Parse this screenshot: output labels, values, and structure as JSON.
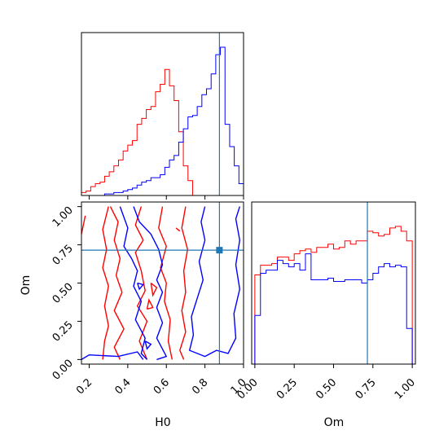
{
  "chart_data": {
    "type": "corner",
    "parameters": [
      "H0",
      "Om"
    ],
    "xlabel_h0": "H0",
    "xlabel_om": "Om",
    "ylabel_om": "Om",
    "ticks": {
      "H0": [
        "0.2",
        "0.4",
        "0.6",
        "0.8",
        "1.0"
      ],
      "Om": [
        "0.00",
        "0.25",
        "0.50",
        "0.75",
        "1.00"
      ]
    },
    "truth": {
      "H0": 0.875,
      "Om": 0.715
    },
    "colors": {
      "red": "#ff0000",
      "blue": "#0000ff",
      "truth": "#1f77b4"
    },
    "hist_h0": {
      "range": [
        0.16,
        1.0
      ],
      "red": [
        0.02,
        0.03,
        0.06,
        0.08,
        0.09,
        0.13,
        0.16,
        0.2,
        0.24,
        0.3,
        0.34,
        0.37,
        0.48,
        0.52,
        0.58,
        0.6,
        0.7,
        0.75,
        0.85,
        0.74,
        0.64,
        0.43,
        0.2,
        0.1,
        0.0,
        0.0,
        0.0,
        0.0,
        0.0,
        0.0,
        0.0,
        0.0,
        0.0,
        0.0,
        0.0
      ],
      "blue": [
        0.0,
        0.0,
        0.0,
        0.0,
        0.0,
        0.01,
        0.01,
        0.02,
        0.02,
        0.03,
        0.04,
        0.05,
        0.07,
        0.09,
        0.1,
        0.12,
        0.12,
        0.14,
        0.19,
        0.24,
        0.27,
        0.36,
        0.45,
        0.53,
        0.54,
        0.6,
        0.68,
        0.72,
        0.82,
        0.95,
        1.0,
        0.48,
        0.33,
        0.2,
        0.08
      ]
    },
    "hist_om": {
      "range": [
        0.0,
        1.0
      ],
      "red": [
        0.55,
        0.61,
        0.61,
        0.62,
        0.66,
        0.66,
        0.64,
        0.68,
        0.7,
        0.71,
        0.69,
        0.72,
        0.72,
        0.74,
        0.71,
        0.72,
        0.76,
        0.74,
        0.76,
        0.76,
        0.82,
        0.81,
        0.79,
        0.8,
        0.84,
        0.85,
        0.82,
        0.76
      ],
      "blue": [
        0.3,
        0.56,
        0.58,
        0.58,
        0.64,
        0.62,
        0.6,
        0.62,
        0.58,
        0.68,
        0.52,
        0.52,
        0.52,
        0.53,
        0.51,
        0.51,
        0.52,
        0.52,
        0.52,
        0.5,
        0.52,
        0.56,
        0.6,
        0.62,
        0.6,
        0.61,
        0.6,
        0.22
      ]
    },
    "contours_2d": {
      "red": [
        [
          [
            0.27,
            0.0
          ],
          [
            0.28,
            0.12
          ],
          [
            0.3,
            0.22
          ],
          [
            0.28,
            0.35
          ],
          [
            0.3,
            0.48
          ],
          [
            0.27,
            0.6
          ],
          [
            0.29,
            0.72
          ],
          [
            0.27,
            0.85
          ],
          [
            0.3,
            1.0
          ]
        ],
        [
          [
            0.31,
            1.0
          ],
          [
            0.35,
            0.9
          ],
          [
            0.33,
            0.78
          ],
          [
            0.36,
            0.66
          ],
          [
            0.34,
            0.55
          ],
          [
            0.37,
            0.44
          ],
          [
            0.33,
            0.32
          ],
          [
            0.38,
            0.2
          ],
          [
            0.33,
            0.08
          ],
          [
            0.36,
            0.0
          ]
        ],
        [
          [
            0.47,
            1.0
          ],
          [
            0.44,
            0.88
          ],
          [
            0.48,
            0.78
          ],
          [
            0.44,
            0.7
          ],
          [
            0.47,
            0.58
          ],
          [
            0.49,
            0.45
          ],
          [
            0.45,
            0.35
          ],
          [
            0.5,
            0.25
          ],
          [
            0.46,
            0.12
          ],
          [
            0.5,
            0.0
          ]
        ],
        [
          [
            0.58,
            1.0
          ],
          [
            0.56,
            0.86
          ],
          [
            0.6,
            0.74
          ],
          [
            0.57,
            0.6
          ],
          [
            0.6,
            0.5
          ],
          [
            0.59,
            0.38
          ],
          [
            0.62,
            0.26
          ],
          [
            0.61,
            0.12
          ],
          [
            0.63,
            0.0
          ]
        ],
        [
          [
            0.7,
            1.0
          ],
          [
            0.68,
            0.86
          ],
          [
            0.71,
            0.72
          ],
          [
            0.69,
            0.58
          ],
          [
            0.7,
            0.44
          ],
          [
            0.68,
            0.32
          ],
          [
            0.7,
            0.18
          ],
          [
            0.67,
            0.06
          ],
          [
            0.69,
            0.0
          ]
        ],
        [
          [
            0.16,
            0.82
          ],
          [
            0.18,
            0.94
          ]
        ],
        [
          [
            0.52,
            0.5
          ],
          [
            0.53,
            0.42
          ],
          [
            0.55,
            0.47
          ],
          [
            0.52,
            0.5
          ]
        ],
        [
          [
            0.5,
            0.33
          ],
          [
            0.51,
            0.39
          ],
          [
            0.53,
            0.34
          ],
          [
            0.5,
            0.33
          ]
        ],
        [
          [
            0.65,
            0.86
          ],
          [
            0.67,
            0.84
          ]
        ]
      ],
      "blue": [
        [
          [
            0.16,
            0.0
          ],
          [
            0.2,
            0.03
          ],
          [
            0.35,
            0.02
          ],
          [
            0.45,
            0.05
          ],
          [
            0.48,
            0.0
          ]
        ],
        [
          [
            0.36,
            1.0
          ],
          [
            0.4,
            0.86
          ],
          [
            0.38,
            0.74
          ],
          [
            0.42,
            0.66
          ],
          [
            0.45,
            0.58
          ],
          [
            0.43,
            0.48
          ],
          [
            0.47,
            0.38
          ],
          [
            0.44,
            0.26
          ],
          [
            0.49,
            0.14
          ],
          [
            0.47,
            0.04
          ],
          [
            0.5,
            0.0
          ]
        ],
        [
          [
            0.43,
            1.0
          ],
          [
            0.46,
            0.9
          ],
          [
            0.52,
            0.82
          ],
          [
            0.56,
            0.72
          ],
          [
            0.58,
            0.62
          ],
          [
            0.55,
            0.52
          ],
          [
            0.58,
            0.44
          ],
          [
            0.55,
            0.34
          ],
          [
            0.58,
            0.24
          ],
          [
            0.55,
            0.14
          ],
          [
            0.6,
            0.02
          ],
          [
            0.55,
            0.0
          ]
        ],
        [
          [
            0.8,
            1.0
          ],
          [
            0.78,
            0.9
          ],
          [
            0.8,
            0.78
          ],
          [
            0.77,
            0.64
          ],
          [
            0.79,
            0.52
          ],
          [
            0.76,
            0.4
          ],
          [
            0.73,
            0.28
          ],
          [
            0.74,
            0.16
          ],
          [
            0.72,
            0.06
          ],
          [
            0.8,
            0.02
          ],
          [
            0.86,
            0.06
          ],
          [
            0.92,
            0.04
          ],
          [
            0.96,
            0.14
          ],
          [
            0.95,
            0.3
          ],
          [
            0.98,
            0.46
          ],
          [
            0.96,
            0.62
          ],
          [
            0.98,
            0.78
          ],
          [
            0.96,
            0.92
          ],
          [
            0.98,
            1.0
          ]
        ],
        [
          [
            0.45,
            0.5
          ],
          [
            0.46,
            0.46
          ],
          [
            0.48,
            0.49
          ],
          [
            0.45,
            0.5
          ]
        ],
        [
          [
            0.49,
            0.12
          ],
          [
            0.5,
            0.07
          ],
          [
            0.52,
            0.1
          ],
          [
            0.49,
            0.12
          ]
        ]
      ]
    }
  }
}
